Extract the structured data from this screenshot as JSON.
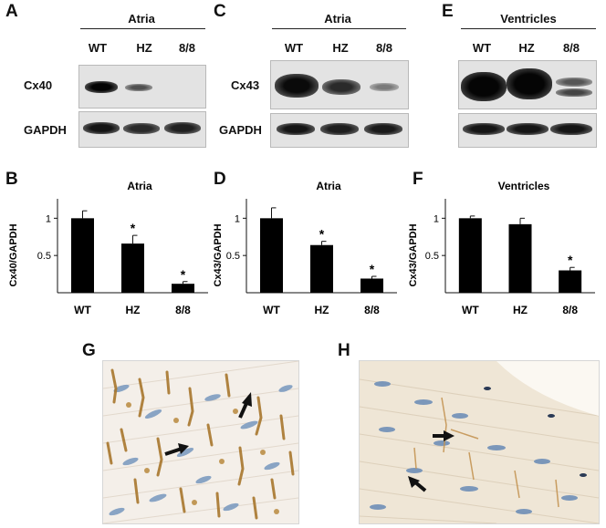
{
  "panels": {
    "A": {
      "letter": "A",
      "header": "Atria",
      "lanes": [
        "WT",
        "HZ",
        "8/8"
      ],
      "rows": [
        "Cx40",
        "GAPDH"
      ]
    },
    "C": {
      "letter": "C",
      "header": "Atria",
      "lanes": [
        "WT",
        "HZ",
        "8/8"
      ],
      "rows": [
        "Cx43",
        "GAPDH"
      ]
    },
    "E": {
      "letter": "E",
      "header": "Ventricles",
      "lanes": [
        "WT",
        "HZ",
        "8/8"
      ]
    },
    "G": {
      "letter": "G"
    },
    "H": {
      "letter": "H"
    }
  },
  "chart_data": [
    {
      "panel": "B",
      "type": "bar",
      "title": "Atria",
      "ylabel": "Cx40/GAPDH",
      "categories": [
        "WT",
        "HZ",
        "8/8"
      ],
      "values": [
        1.0,
        0.66,
        0.12
      ],
      "errors": [
        0.1,
        0.11,
        0.03
      ],
      "significance": [
        "",
        "*",
        "*"
      ],
      "yticks": [
        "0.5",
        "1"
      ],
      "ylim": [
        0,
        1.2
      ]
    },
    {
      "panel": "D",
      "type": "bar",
      "title": "Atria",
      "ylabel": "Cx43/GAPDH",
      "categories": [
        "WT",
        "HZ",
        "8/8"
      ],
      "values": [
        1.0,
        0.64,
        0.19
      ],
      "errors": [
        0.14,
        0.05,
        0.03
      ],
      "significance": [
        "",
        "*",
        "*"
      ],
      "yticks": [
        "0.5",
        "1"
      ],
      "ylim": [
        0,
        1.2
      ]
    },
    {
      "panel": "F",
      "type": "bar",
      "title": "Ventricles",
      "ylabel": "Cx43/GAPDH",
      "categories": [
        "WT",
        "HZ",
        "8/8"
      ],
      "values": [
        1.0,
        0.92,
        0.3
      ],
      "errors": [
        0.03,
        0.08,
        0.04
      ],
      "significance": [
        "",
        "",
        "*"
      ],
      "yticks": [
        "0.5",
        "1"
      ],
      "ylim": [
        0,
        1.2
      ]
    }
  ]
}
